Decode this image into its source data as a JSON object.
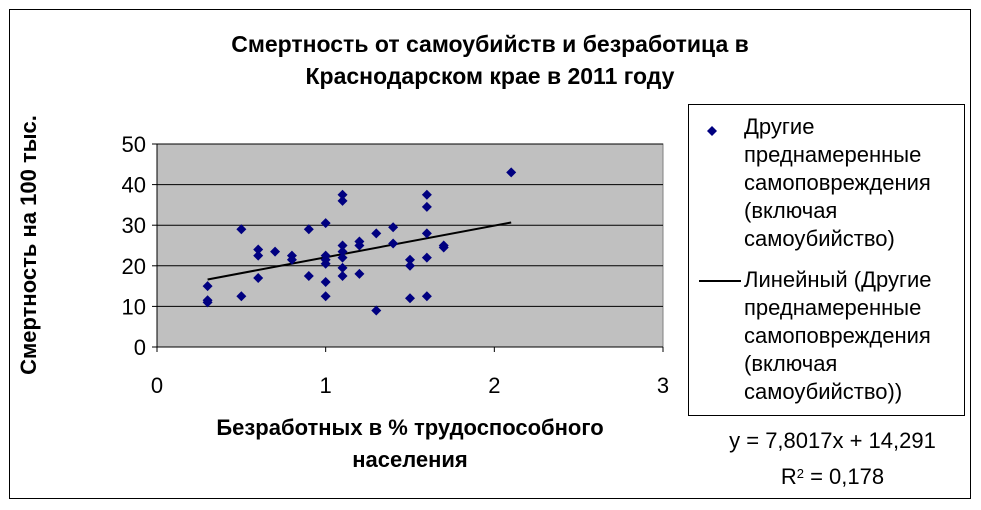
{
  "chart_data": {
    "type": "scatter",
    "title": "Смертность от самоубийств и безработица в Краснодарском крае в 2011 году",
    "xlabel": "Безработных в % трудоспособного населения",
    "ylabel": "Смертность на 100 тыс.",
    "xlim": [
      0,
      3
    ],
    "ylim": [
      0,
      50
    ],
    "x_ticks": [
      "0",
      "1",
      "2",
      "3"
    ],
    "y_ticks": [
      "0",
      "10",
      "20",
      "30",
      "40",
      "50"
    ],
    "grid": "horizontal",
    "legend_position": "right",
    "series": [
      {
        "name": "Другие преднамеренные самоповреждения (включая самоубийство)",
        "marker": "diamond",
        "color": "#000080",
        "points": [
          [
            0.3,
            15.0
          ],
          [
            0.3,
            11.5
          ],
          [
            0.3,
            11.0
          ],
          [
            0.5,
            29.0
          ],
          [
            0.5,
            12.5
          ],
          [
            0.6,
            24.0
          ],
          [
            0.6,
            22.5
          ],
          [
            0.6,
            17.0
          ],
          [
            0.7,
            23.5
          ],
          [
            0.8,
            22.5
          ],
          [
            0.8,
            21.5
          ],
          [
            0.9,
            29.0
          ],
          [
            0.9,
            17.5
          ],
          [
            1.0,
            30.5
          ],
          [
            1.0,
            22.5
          ],
          [
            1.0,
            21.5
          ],
          [
            1.0,
            20.5
          ],
          [
            1.0,
            16.0
          ],
          [
            1.0,
            12.5
          ],
          [
            1.1,
            37.5
          ],
          [
            1.1,
            36.0
          ],
          [
            1.1,
            25.0
          ],
          [
            1.1,
            23.5
          ],
          [
            1.1,
            22.0
          ],
          [
            1.1,
            19.5
          ],
          [
            1.1,
            17.5
          ],
          [
            1.2,
            26.0
          ],
          [
            1.2,
            25.0
          ],
          [
            1.2,
            18.0
          ],
          [
            1.3,
            28.0
          ],
          [
            1.3,
            9.0
          ],
          [
            1.4,
            29.5
          ],
          [
            1.4,
            25.5
          ],
          [
            1.5,
            21.5
          ],
          [
            1.5,
            20.0
          ],
          [
            1.5,
            12.0
          ],
          [
            1.6,
            37.5
          ],
          [
            1.6,
            34.5
          ],
          [
            1.6,
            28.0
          ],
          [
            1.6,
            22.0
          ],
          [
            1.6,
            12.5
          ],
          [
            1.7,
            25.0
          ],
          [
            1.7,
            24.5
          ],
          [
            2.1,
            43.0
          ]
        ]
      },
      {
        "name": "Линейный (Другие преднамеренные самоповреждения (включая самоубийство))",
        "type": "trendline",
        "color": "#000000",
        "x_range": [
          0.3,
          2.1
        ],
        "slope": 7.8017,
        "intercept": 14.291
      }
    ],
    "equation": "y = 7,8017x + 14,291",
    "r2_prefix": "R",
    "r2_sup": "2",
    "r2_value": " = 0,178",
    "colors": {
      "plot_bg": "#c0c0c0",
      "gridline": "#000000",
      "marker": "#000080"
    }
  }
}
